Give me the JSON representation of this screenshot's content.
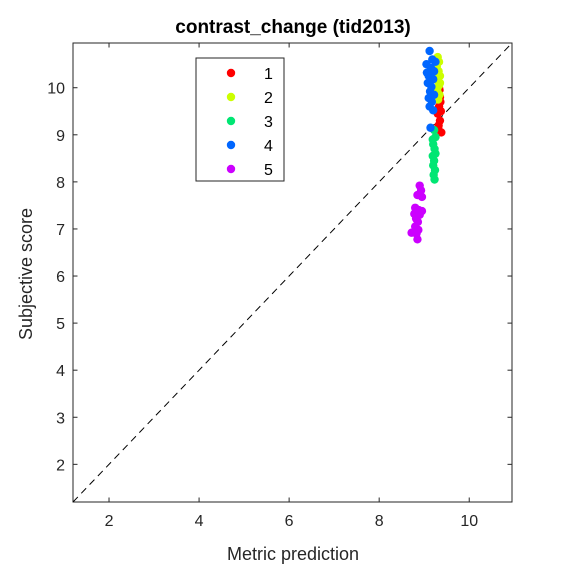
{
  "chart_data": {
    "type": "scatter",
    "title": "contrast_change (tid2013)",
    "xlabel": "Metric prediction",
    "ylabel": "Subjective score",
    "xlim": [
      1.2,
      10.95
    ],
    "ylim": [
      1.2,
      10.95
    ],
    "xticks": [
      2,
      4,
      6,
      8,
      10
    ],
    "yticks": [
      2,
      3,
      4,
      5,
      6,
      7,
      8,
      9,
      10
    ],
    "grid": false,
    "legend_position": "top-left",
    "reference_line": "identity (dashed)",
    "series": [
      {
        "name": "1",
        "color": "#ff0000",
        "points": [
          [
            9.32,
            9.2
          ],
          [
            9.35,
            9.3
          ],
          [
            9.3,
            9.45
          ],
          [
            9.33,
            9.6
          ],
          [
            9.36,
            9.7
          ],
          [
            9.3,
            9.85
          ],
          [
            9.34,
            9.95
          ],
          [
            9.38,
            9.05
          ],
          [
            9.31,
            9.15
          ],
          [
            9.35,
            9.8
          ],
          [
            9.33,
            10.0
          ],
          [
            9.37,
            9.5
          ]
        ]
      },
      {
        "name": "2",
        "color": "#ccff00",
        "points": [
          [
            9.3,
            10.65
          ],
          [
            9.33,
            10.55
          ],
          [
            9.28,
            10.45
          ],
          [
            9.32,
            10.35
          ],
          [
            9.35,
            10.25
          ],
          [
            9.3,
            10.15
          ],
          [
            9.33,
            10.05
          ],
          [
            9.29,
            9.95
          ],
          [
            9.34,
            9.85
          ],
          [
            9.31,
            9.75
          ],
          [
            9.35,
            10.1
          ],
          [
            9.28,
            10.3
          ]
        ]
      },
      {
        "name": "3",
        "color": "#00e673",
        "points": [
          [
            9.22,
            9.1
          ],
          [
            9.25,
            8.95
          ],
          [
            9.2,
            8.8
          ],
          [
            9.23,
            8.7
          ],
          [
            9.19,
            8.55
          ],
          [
            9.22,
            8.45
          ],
          [
            9.2,
            8.35
          ],
          [
            9.24,
            8.25
          ],
          [
            9.21,
            8.15
          ],
          [
            9.23,
            8.05
          ],
          [
            9.25,
            8.6
          ],
          [
            9.19,
            8.9
          ]
        ]
      },
      {
        "name": "4",
        "color": "#0066ff",
        "points": [
          [
            9.12,
            10.78
          ],
          [
            9.18,
            10.6
          ],
          [
            9.05,
            10.5
          ],
          [
            9.15,
            10.42
          ],
          [
            9.22,
            10.35
          ],
          [
            9.1,
            10.25
          ],
          [
            9.2,
            10.18
          ],
          [
            9.08,
            10.1
          ],
          [
            9.16,
            10.02
          ],
          [
            9.13,
            9.92
          ],
          [
            9.22,
            9.85
          ],
          [
            9.1,
            9.78
          ],
          [
            9.17,
            9.7
          ],
          [
            9.12,
            9.6
          ],
          [
            9.2,
            9.52
          ],
          [
            9.14,
            9.15
          ],
          [
            9.25,
            10.55
          ],
          [
            9.06,
            10.32
          ]
        ]
      },
      {
        "name": "5",
        "color": "#cc00ff",
        "points": [
          [
            8.9,
            7.92
          ],
          [
            8.93,
            7.82
          ],
          [
            8.85,
            7.72
          ],
          [
            8.95,
            7.68
          ],
          [
            8.8,
            7.45
          ],
          [
            8.88,
            7.4
          ],
          [
            8.95,
            7.38
          ],
          [
            8.78,
            7.32
          ],
          [
            8.9,
            7.3
          ],
          [
            8.82,
            7.22
          ],
          [
            8.86,
            7.15
          ],
          [
            8.8,
            7.05
          ],
          [
            8.87,
            6.98
          ],
          [
            8.72,
            6.92
          ],
          [
            8.83,
            6.9
          ],
          [
            8.85,
            6.78
          ]
        ]
      }
    ]
  }
}
